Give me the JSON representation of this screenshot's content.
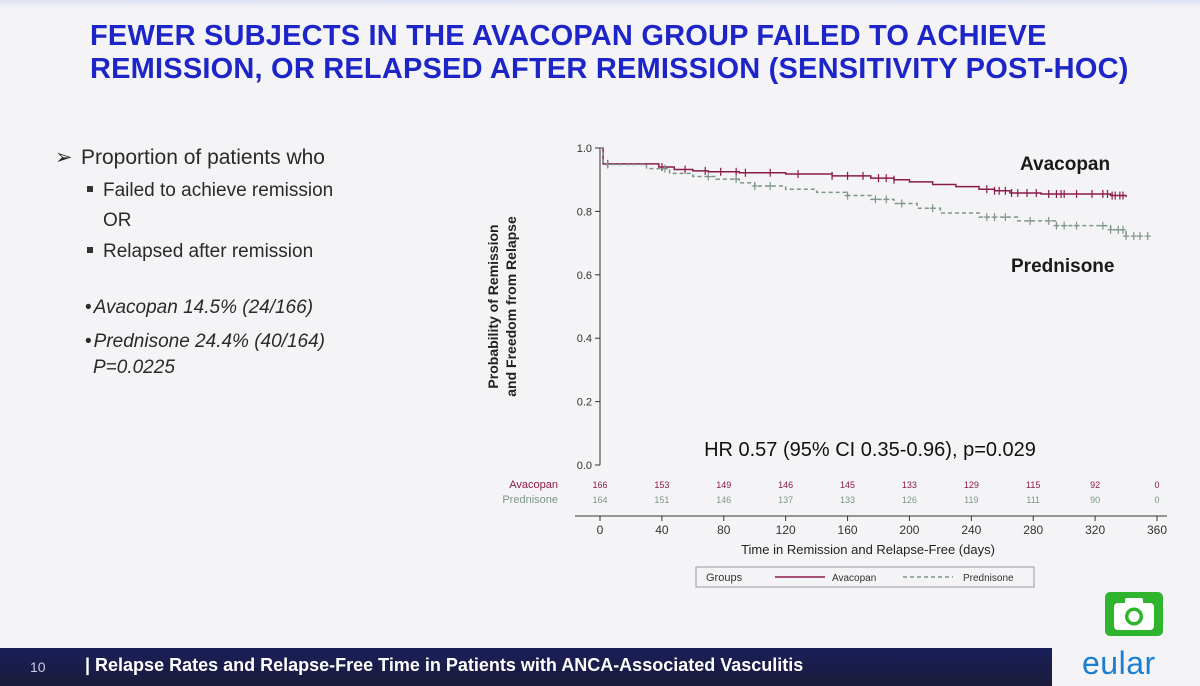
{
  "slide": {
    "title_line1": "FEWER SUBJECTS IN THE AVACOPAN GROUP FAILED TO ACHIEVE",
    "title_line2": "REMISSION, OR RELAPSED AFTER REMISSION (SENSITIVITY POST-HOC)"
  },
  "left": {
    "arrow": "➢",
    "main": "Proportion of patients who",
    "item1": "Failed to achieve remission",
    "or": "OR",
    "item2": "Relapsed after remission",
    "stat1": "Avacopan 14.5% (24/166)",
    "stat2": "Prednisone 24.4% (40/164)",
    "pval": "P=0.0225",
    "dot": "•"
  },
  "footer": {
    "page": "10",
    "text": "|  Relapse Rates and Relapse-Free Time in Patients with ANCA-Associated Vasculitis",
    "logo": "eular"
  },
  "colors": {
    "avacopan": "#8b1a4b",
    "prednisone": "#7d958b",
    "title": "#1d24c8",
    "footer_bg": "#1a1f5a",
    "camera": "#2fb52d"
  },
  "chart_data": {
    "type": "line",
    "xlabel": "Time in Remission and Relapse-Free (days)",
    "ylabel_line1": "Probability of Remission",
    "ylabel_line2": "and Freedom from Relapse",
    "xlim": [
      0,
      360
    ],
    "ylim": [
      0,
      1
    ],
    "xticks": [
      0,
      40,
      80,
      120,
      160,
      200,
      240,
      280,
      320,
      360
    ],
    "yticks": [
      "0.0",
      "0.2",
      "0.4",
      "0.6",
      "0.8",
      "1.0"
    ],
    "annotation": "HR 0.57 (95% CI 0.35-0.96), p=0.029",
    "label_avacopan": "Avacopan",
    "label_prednisone": "Prednisone",
    "legend": {
      "title": "Groups",
      "placement": "bottom",
      "entries": [
        "Avacopan",
        "Prednisone"
      ]
    },
    "series": [
      {
        "name": "Avacopan",
        "style": "solid",
        "x": [
          0,
          2,
          38,
          48,
          60,
          70,
          90,
          120,
          150,
          175,
          190,
          200,
          215,
          230,
          245,
          255,
          265,
          285,
          330,
          340
        ],
        "y": [
          1.0,
          0.95,
          0.94,
          0.932,
          0.928,
          0.925,
          0.922,
          0.918,
          0.912,
          0.905,
          0.9,
          0.893,
          0.885,
          0.878,
          0.87,
          0.865,
          0.858,
          0.855,
          0.85,
          0.845
        ],
        "censor_x": [
          5,
          40,
          55,
          68,
          78,
          88,
          94,
          110,
          128,
          150,
          160,
          170,
          180,
          185,
          190,
          250,
          255,
          258,
          262,
          266,
          270,
          276,
          282,
          290,
          295,
          298,
          300,
          308,
          318,
          325,
          328,
          331,
          333,
          336,
          338
        ]
      },
      {
        "name": "Prednisone",
        "style": "dashed",
        "x": [
          0,
          2,
          30,
          45,
          60,
          75,
          90,
          100,
          120,
          140,
          160,
          175,
          190,
          205,
          220,
          245,
          270,
          295,
          330,
          340
        ],
        "y": [
          1.0,
          0.948,
          0.935,
          0.92,
          0.91,
          0.902,
          0.89,
          0.88,
          0.87,
          0.86,
          0.85,
          0.838,
          0.825,
          0.81,
          0.795,
          0.782,
          0.77,
          0.755,
          0.742,
          0.722
        ],
        "censor_x": [
          5,
          42,
          70,
          88,
          100,
          110,
          160,
          178,
          185,
          195,
          215,
          250,
          255,
          262,
          278,
          290,
          295,
          300,
          308,
          325,
          330,
          335,
          338,
          340,
          345,
          349,
          354
        ]
      }
    ],
    "risk_table": {
      "times": [
        0,
        40,
        80,
        120,
        160,
        200,
        240,
        280,
        320,
        360
      ],
      "rows": [
        {
          "name": "Avacopan",
          "counts": [
            "166",
            "153",
            "149",
            "146",
            "145",
            "133",
            "129",
            "115",
            "92",
            "0"
          ]
        },
        {
          "name": "Prednisone",
          "counts": [
            "164",
            "151",
            "146",
            "137",
            "133",
            "126",
            "119",
            "111",
            "90",
            "0"
          ]
        }
      ]
    }
  }
}
